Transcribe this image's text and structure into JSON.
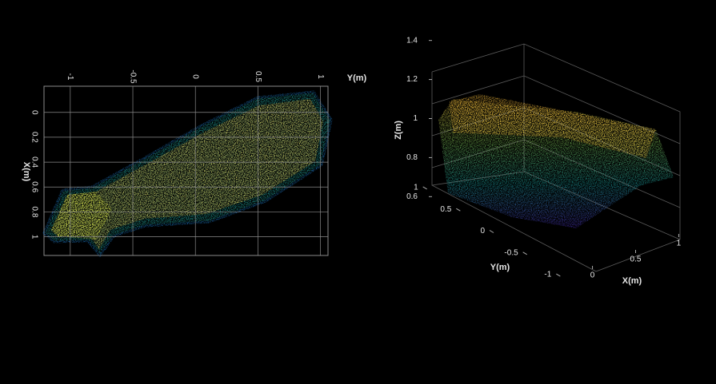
{
  "chart_data": [
    {
      "type": "scatter",
      "xlabel": "Y(m)",
      "ylabel": "X(m)",
      "xlim": [
        -1.21,
        1.06
      ],
      "ylim": [
        -0.21,
        1.15
      ],
      "yreverse": true,
      "xticks": [
        -1,
        -0.5,
        0,
        0.5,
        1
      ],
      "yticks": [
        0,
        0.2,
        0.4,
        0.6,
        0.8,
        1
      ],
      "grid": true
    },
    {
      "type": "scatter3d",
      "xlabel": "X(m)",
      "ylabel": "Y(m)",
      "zlabel": "Z(m)",
      "xlim": [
        -0.2,
        1.2
      ],
      "ylim": [
        -1.2,
        1.2
      ],
      "zlim": [
        0.45,
        1.55
      ],
      "xticks": [
        0,
        0.5,
        1
      ],
      "yticks": [
        -1,
        -0.5,
        0,
        0.5,
        1
      ],
      "zticks": [
        0.6,
        0.8,
        1,
        1.2,
        1.4
      ],
      "grid": true
    }
  ]
}
